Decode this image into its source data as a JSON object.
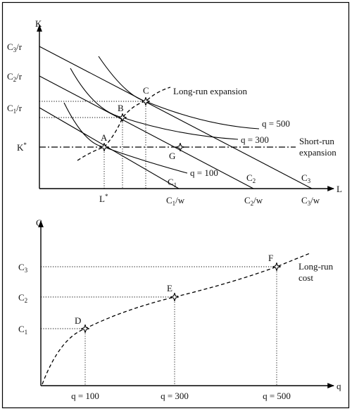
{
  "top": {
    "y_axis_label": "K",
    "x_axis_label": "L",
    "y_ticks": [
      {
        "main": "C",
        "sub": "3",
        "tail": "/r"
      },
      {
        "main": "C",
        "sub": "2",
        "tail": "/r"
      },
      {
        "main": "C",
        "sub": "1",
        "tail": "/r"
      },
      {
        "main": "K",
        "sup": "*"
      }
    ],
    "x_ticks": [
      {
        "main": "L",
        "sup": "*"
      },
      {
        "main": "C",
        "sub": "1",
        "tail": "/w"
      },
      {
        "main": "C",
        "sub": "2",
        "tail": "/w"
      },
      {
        "main": "C",
        "sub": "3",
        "tail": "/w"
      }
    ],
    "isocost_labels": [
      {
        "main": "C",
        "sub": "1"
      },
      {
        "main": "C",
        "sub": "2"
      },
      {
        "main": "C",
        "sub": "3"
      }
    ],
    "isoquant_labels": [
      "q = 100",
      "q = 300",
      "q = 500"
    ],
    "points": [
      "A",
      "B",
      "C",
      "G"
    ],
    "long_run_label": "Long-run expansion",
    "short_run_label_1": "Short-run",
    "short_run_label_2": "expansion"
  },
  "bottom": {
    "y_axis_label": "C",
    "x_axis_label": "q",
    "y_ticks": [
      {
        "main": "C",
        "sub": "3"
      },
      {
        "main": "C",
        "sub": "2"
      },
      {
        "main": "C",
        "sub": "1"
      }
    ],
    "x_ticks": [
      "q = 100",
      "q = 300",
      "q = 500"
    ],
    "points": [
      "D",
      "E",
      "F"
    ],
    "curve_label_1": "Long-run",
    "curve_label_2": "cost"
  }
}
